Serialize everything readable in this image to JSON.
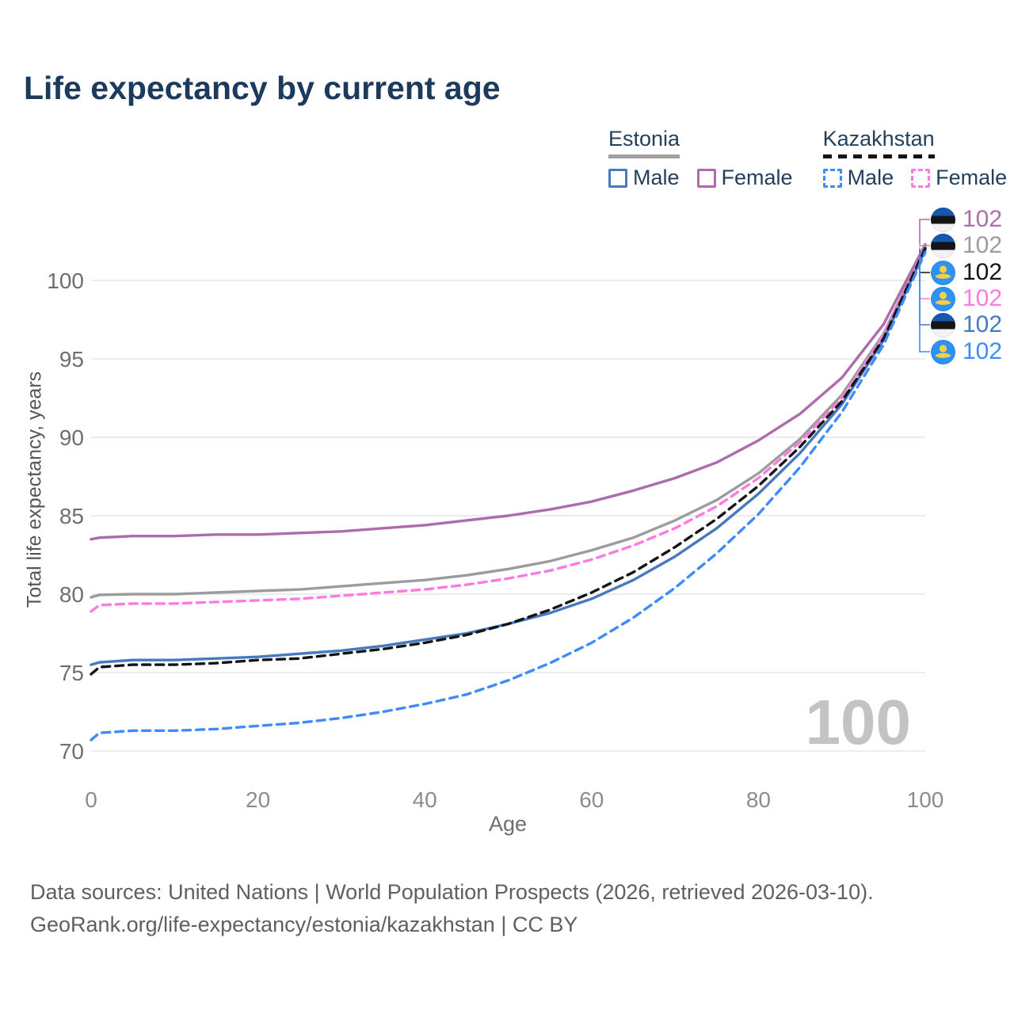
{
  "header": {
    "title": "Life expectancy by current age"
  },
  "legend": {
    "groups": [
      {
        "name": "Estonia",
        "style": "solid",
        "swatch_color": "#a0a0a0",
        "items": [
          {
            "label": "Male",
            "color": "#4679bd",
            "dashed": false
          },
          {
            "label": "Female",
            "color": "#ad6cab",
            "dashed": false
          }
        ]
      },
      {
        "name": "Kazakhstan",
        "style": "dashed",
        "swatch_color": "#141414",
        "items": [
          {
            "label": "Male",
            "color": "#3e8bfb",
            "dashed": true
          },
          {
            "label": "Female",
            "color": "#ff7ae0",
            "dashed": true
          }
        ]
      }
    ]
  },
  "chart_data": {
    "type": "line",
    "title": "Life expectancy by current age",
    "xlabel": "Age",
    "ylabel": "Total life expectancy, years",
    "xlim": [
      0,
      100
    ],
    "ylim": [
      69,
      103
    ],
    "x_ticks": [
      0,
      20,
      40,
      60,
      80,
      100
    ],
    "y_ticks": [
      70,
      75,
      80,
      85,
      90,
      95,
      100
    ],
    "grid": "horizontal-only",
    "legend_position": "top-right",
    "age_indicator": "100",
    "x": [
      0,
      1,
      5,
      10,
      15,
      20,
      25,
      30,
      35,
      40,
      45,
      50,
      55,
      60,
      65,
      70,
      75,
      80,
      85,
      90,
      95,
      100
    ],
    "series": [
      {
        "name": "Estonia Female",
        "country": "Estonia",
        "sex": "Female",
        "color": "#ad6cab",
        "dashed": false,
        "values": [
          83.5,
          83.6,
          83.7,
          83.7,
          83.8,
          83.8,
          83.9,
          84.0,
          84.2,
          84.4,
          84.7,
          85.0,
          85.4,
          85.9,
          86.6,
          87.4,
          88.4,
          89.8,
          91.5,
          93.8,
          97.2,
          102.3
        ]
      },
      {
        "name": "Estonia Both sexes",
        "country": "Estonia",
        "sex": "Both",
        "color": "#9c9c9c",
        "dashed": false,
        "values": [
          79.8,
          79.95,
          80.0,
          80.0,
          80.1,
          80.2,
          80.3,
          80.5,
          80.7,
          80.9,
          81.2,
          81.6,
          82.1,
          82.8,
          83.6,
          84.7,
          86.0,
          87.7,
          89.9,
          92.7,
          96.6,
          102.15
        ]
      },
      {
        "name": "Kazakhstan Both sexes",
        "country": "Kazakhstan",
        "sex": "Both",
        "color": "#141414",
        "dashed": true,
        "values": [
          74.9,
          75.35,
          75.5,
          75.5,
          75.6,
          75.8,
          75.9,
          76.2,
          76.5,
          76.9,
          77.4,
          78.1,
          79.0,
          80.1,
          81.4,
          83.0,
          84.8,
          86.9,
          89.4,
          92.3,
          96.3,
          102.05
        ]
      },
      {
        "name": "Kazakhstan Female",
        "country": "Kazakhstan",
        "sex": "Female",
        "color": "#ff7ae0",
        "dashed": true,
        "values": [
          78.9,
          79.3,
          79.4,
          79.4,
          79.5,
          79.6,
          79.7,
          79.9,
          80.1,
          80.3,
          80.6,
          81.0,
          81.5,
          82.2,
          83.1,
          84.2,
          85.6,
          87.4,
          89.7,
          92.5,
          96.5,
          102.1
        ]
      },
      {
        "name": "Estonia Male",
        "country": "Estonia",
        "sex": "Male",
        "color": "#4679bd",
        "dashed": false,
        "values": [
          75.5,
          75.65,
          75.8,
          75.8,
          75.9,
          76.0,
          76.2,
          76.4,
          76.7,
          77.1,
          77.5,
          78.1,
          78.8,
          79.7,
          80.9,
          82.4,
          84.2,
          86.4,
          89.0,
          92.1,
          96.2,
          101.95
        ]
      },
      {
        "name": "Kazakhstan Male",
        "country": "Kazakhstan",
        "sex": "Male",
        "color": "#3e8bfb",
        "dashed": true,
        "values": [
          70.7,
          71.15,
          71.3,
          71.3,
          71.4,
          71.6,
          71.8,
          72.1,
          72.5,
          73.0,
          73.6,
          74.5,
          75.6,
          76.9,
          78.5,
          80.4,
          82.6,
          85.1,
          88.1,
          91.6,
          95.9,
          101.8
        ]
      }
    ],
    "end_labels": [
      {
        "flag": "estonia",
        "series": "Estonia Female",
        "value": "102",
        "color": "#ad6cab"
      },
      {
        "flag": "estonia",
        "series": "Estonia Both sexes",
        "value": "102",
        "color": "#9c9c9c"
      },
      {
        "flag": "kazakhstan",
        "series": "Kazakhstan Both sexes",
        "value": "102",
        "color": "#141414"
      },
      {
        "flag": "kazakhstan",
        "series": "Kazakhstan Female",
        "value": "102",
        "color": "#ff7ae0"
      },
      {
        "flag": "estonia",
        "series": "Estonia Male",
        "value": "102",
        "color": "#4679bd"
      },
      {
        "flag": "kazakhstan",
        "series": "Kazakhstan Male",
        "value": "102",
        "color": "#3e8bfb"
      }
    ]
  },
  "footer": {
    "line1": "Data sources: United Nations | World Population Prospects (2026, retrieved 2026-03-10).",
    "line2": "GeoRank.org/life-expectancy/estonia/kazakhstan | CC BY"
  }
}
